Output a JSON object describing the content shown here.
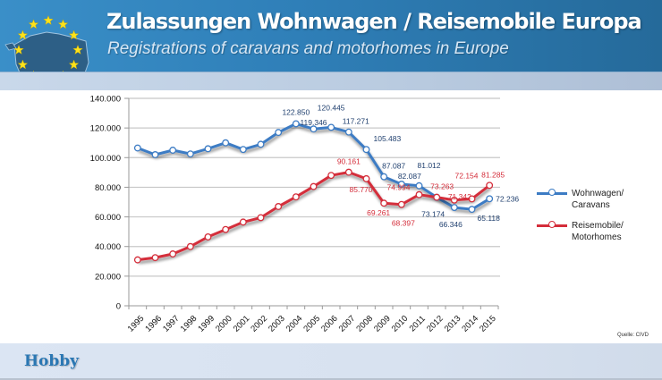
{
  "header": {
    "title": "Zulassungen Wohnwagen / Reisemobile Europa",
    "subtitle": "Registrations of caravans and motorhomes in Europe",
    "logo_icon": "eu-stars-map-icon"
  },
  "footer": {
    "brand": "Hobby",
    "source": "Quelle: CIVD"
  },
  "colors": {
    "caravans": "#3d7cc4",
    "motorhomes": "#d42d3a",
    "header_blue": "#2f7fb8"
  },
  "chart_data": {
    "type": "line",
    "title": "Zulassungen Wohnwagen / Reisemobile Europa",
    "xlabel": "",
    "ylabel": "",
    "ylim": [
      0,
      140000
    ],
    "yticks": [
      0,
      20000,
      40000,
      60000,
      80000,
      100000,
      120000,
      140000
    ],
    "ytick_labels": [
      "0",
      "20.000",
      "40.000",
      "60.000",
      "80.000",
      "100.000",
      "120.000",
      "140.000"
    ],
    "grid": true,
    "legend_position": "right",
    "categories": [
      "1995",
      "1996",
      "1997",
      "1998",
      "1999",
      "2000",
      "2001",
      "2002",
      "2003",
      "2004",
      "2005",
      "2006",
      "2007",
      "2008",
      "2009",
      "2010",
      "2011",
      "2012",
      "2013",
      "2014",
      "2015"
    ],
    "series": [
      {
        "name": "Wohnwagen/ Caravans",
        "legend_line1": "Wohnwagen/",
        "legend_line2": "Caravans",
        "color": "#3d7cc4",
        "values": [
          106500,
          102000,
          105000,
          102500,
          106000,
          110000,
          105500,
          109000,
          117000,
          122850,
          119346,
          120445,
          117271,
          105483,
          87087,
          82087,
          81012,
          73174,
          66346,
          65118,
          72236
        ],
        "labels": [
          null,
          null,
          null,
          null,
          null,
          null,
          null,
          null,
          null,
          "122.850",
          "119.346",
          "120.445",
          "117.271",
          "105.483",
          "87.087",
          "82.087",
          "81.012",
          "73.174",
          "66.346",
          "65.118",
          "72.236"
        ]
      },
      {
        "name": "Reisemobile/ Motorhomes",
        "legend_line1": "Reisemobile/",
        "legend_line2": "Motorhomes",
        "color": "#d42d3a",
        "values": [
          31000,
          32500,
          35000,
          40000,
          46500,
          51500,
          56500,
          59500,
          67000,
          73500,
          80500,
          88000,
          90161,
          85770,
          69261,
          68397,
          74994,
          73263,
          71342,
          72154,
          81285
        ],
        "labels": [
          null,
          null,
          null,
          null,
          null,
          null,
          null,
          null,
          null,
          null,
          null,
          null,
          "90.161",
          "85.770",
          "69.261",
          "68.397",
          "74.994",
          "73.263",
          "71.342",
          "72.154",
          "81.285"
        ]
      }
    ]
  }
}
